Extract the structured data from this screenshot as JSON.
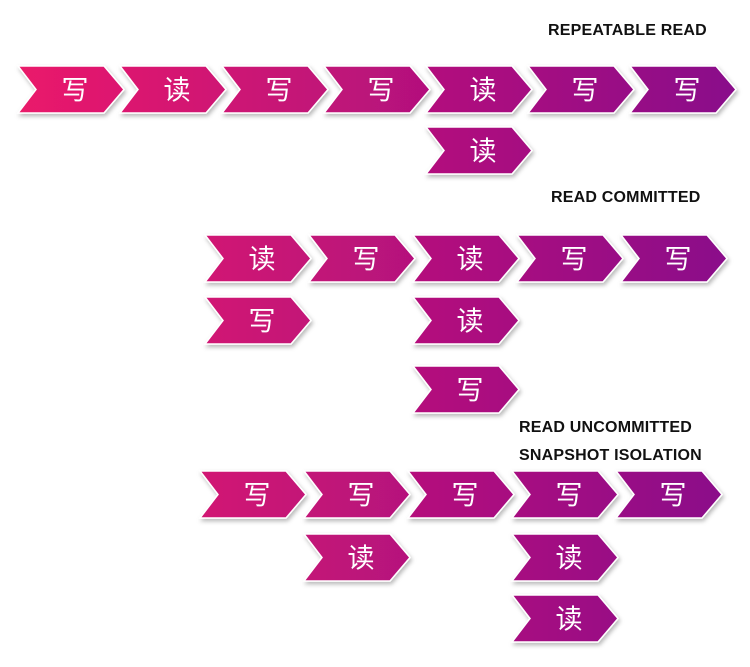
{
  "labels": {
    "repeatable_read": "REPEATABLE READ",
    "read_committed": "READ COMMITTED",
    "read_uncommitted": "READ UNCOMMITTED",
    "snapshot_isolation": "SNAPSHOT ISOLATION"
  },
  "ops": {
    "write": "写",
    "read": "读"
  },
  "colors": {
    "start": "#ea1a6b",
    "end": "#8a0a8a",
    "text": "#ffffff",
    "label": "#111111"
  },
  "sections": [
    {
      "label_key": "repeatable_read",
      "main_row": [
        "write",
        "read",
        "write",
        "write",
        "read",
        "write",
        "write"
      ],
      "branches": [
        {
          "under_index": 4,
          "items": [
            "read"
          ]
        }
      ]
    },
    {
      "label_key": "read_committed",
      "main_row": [
        "read",
        "write",
        "read",
        "write",
        "write"
      ],
      "branches": [
        {
          "under_index": 0,
          "items": [
            "write"
          ]
        },
        {
          "under_index": 2,
          "items": [
            "read",
            "write"
          ]
        }
      ]
    },
    {
      "label_key": "read_uncommitted_snapshot",
      "main_row": [
        "write",
        "write",
        "write",
        "write",
        "write"
      ],
      "branches": [
        {
          "under_index": 1,
          "items": [
            "read"
          ]
        },
        {
          "under_index": 3,
          "items": [
            "read",
            "read"
          ]
        }
      ]
    }
  ]
}
